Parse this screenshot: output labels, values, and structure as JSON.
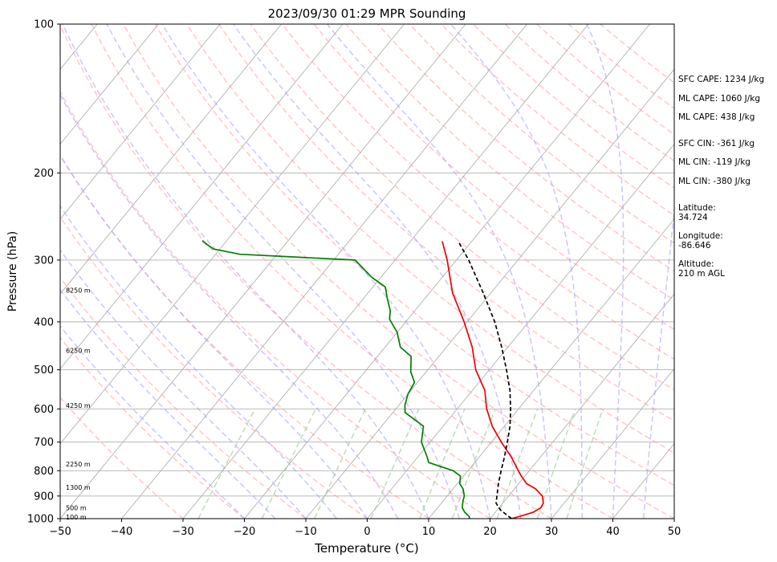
{
  "chart_data": {
    "type": "line",
    "title": "2023/09/30 01:29 MPR Sounding",
    "xlabel": "Temperature (°C)",
    "ylabel": "Pressure (hPa)",
    "xlim": [
      -50,
      50
    ],
    "ylim": [
      1000,
      100
    ],
    "y_scale": "log",
    "grid": true,
    "x_ticks": [
      "−50",
      "−40",
      "−30",
      "−20",
      "−10",
      "0",
      "10",
      "20",
      "30",
      "40",
      "50"
    ],
    "y_ticks": [
      "100",
      "200",
      "300",
      "400",
      "500",
      "600",
      "700",
      "800",
      "900",
      "1000"
    ],
    "height_labels": [
      {
        "text": "100 m",
        "pressure": 992
      },
      {
        "text": "500 m",
        "pressure": 950
      },
      {
        "text": "1300 m",
        "pressure": 865
      },
      {
        "text": "2250 m",
        "pressure": 775
      },
      {
        "text": "4250 m",
        "pressure": 590
      },
      {
        "text": "6250 m",
        "pressure": 457
      },
      {
        "text": "8250 m",
        "pressure": 345
      }
    ],
    "series": [
      {
        "color": "#ee0000",
        "points": [
          {
            "p": 1000,
            "t": 23.5
          },
          {
            "p": 990,
            "t": 24.5
          },
          {
            "p": 970,
            "t": 26.2
          },
          {
            "p": 950,
            "t": 26.8
          },
          {
            "p": 930,
            "t": 26.6
          },
          {
            "p": 900,
            "t": 25.5
          },
          {
            "p": 870,
            "t": 23.4
          },
          {
            "p": 850,
            "t": 21.3
          },
          {
            "p": 820,
            "t": 19.4
          },
          {
            "p": 800,
            "t": 18.2
          },
          {
            "p": 750,
            "t": 15.2
          },
          {
            "p": 700,
            "t": 11.6
          },
          {
            "p": 650,
            "t": 8.0
          },
          {
            "p": 600,
            "t": 4.8
          },
          {
            "p": 550,
            "t": 2.0
          },
          {
            "p": 500,
            "t": -2.2
          },
          {
            "p": 450,
            "t": -5.8
          },
          {
            "p": 400,
            "t": -10.5
          },
          {
            "p": 350,
            "t": -16.2
          },
          {
            "p": 300,
            "t": -21.5
          },
          {
            "p": 275,
            "t": -24.8
          }
        ]
      },
      {
        "color": "#008000",
        "points": [
          {
            "p": 1000,
            "t": 16.7
          },
          {
            "p": 990,
            "t": 16.3
          },
          {
            "p": 970,
            "t": 15.0
          },
          {
            "p": 950,
            "t": 14.0
          },
          {
            "p": 920,
            "t": 13.2
          },
          {
            "p": 900,
            "t": 12.8
          },
          {
            "p": 870,
            "t": 11.6
          },
          {
            "p": 850,
            "t": 10.4
          },
          {
            "p": 820,
            "t": 9.5
          },
          {
            "p": 800,
            "t": 7.6
          },
          {
            "p": 770,
            "t": 2.5
          },
          {
            "p": 750,
            "t": 1.5
          },
          {
            "p": 700,
            "t": -1.4
          },
          {
            "p": 650,
            "t": -3.2
          },
          {
            "p": 610,
            "t": -8.0
          },
          {
            "p": 590,
            "t": -9.0
          },
          {
            "p": 560,
            "t": -10.0
          },
          {
            "p": 530,
            "t": -10.5
          },
          {
            "p": 505,
            "t": -12.5
          },
          {
            "p": 470,
            "t": -14.5
          },
          {
            "p": 450,
            "t": -17.5
          },
          {
            "p": 420,
            "t": -20.0
          },
          {
            "p": 395,
            "t": -23.0
          },
          {
            "p": 380,
            "t": -24.0
          },
          {
            "p": 360,
            "t": -26.0
          },
          {
            "p": 340,
            "t": -28.0
          },
          {
            "p": 325,
            "t": -31.5
          },
          {
            "p": 300,
            "t": -36.5
          },
          {
            "p": 292,
            "t": -56.0
          },
          {
            "p": 285,
            "t": -61.0
          },
          {
            "p": 278,
            "t": -63.0
          },
          {
            "p": 274,
            "t": -64.0
          }
        ]
      },
      {
        "color": "#000000",
        "dashed": true,
        "points": [
          {
            "p": 1000,
            "t": 23.5
          },
          {
            "p": 960,
            "t": 20.5
          },
          {
            "p": 930,
            "t": 18.9
          },
          {
            "p": 900,
            "t": 18.1
          },
          {
            "p": 850,
            "t": 16.7
          },
          {
            "p": 800,
            "t": 15.4
          },
          {
            "p": 750,
            "t": 14.1
          },
          {
            "p": 700,
            "t": 12.6
          },
          {
            "p": 650,
            "t": 10.9
          },
          {
            "p": 600,
            "t": 8.7
          },
          {
            "p": 550,
            "t": 6.1
          },
          {
            "p": 500,
            "t": 2.8
          },
          {
            "p": 450,
            "t": -1.0
          },
          {
            "p": 400,
            "t": -5.5
          },
          {
            "p": 350,
            "t": -11.2
          },
          {
            "p": 300,
            "t": -18.0
          },
          {
            "p": 275,
            "t": -22.2
          }
        ]
      }
    ],
    "reference_lines": {
      "isotherms": {
        "color": "#b0b0b0"
      },
      "dry_adiabats": {
        "color": "#ff9999"
      },
      "moist_adiabats": {
        "color": "#a8a0f0"
      },
      "mixing_ratio": {
        "color": "#99cc99"
      }
    }
  },
  "side_panel": [
    "SFC CAPE: 1234 J/kg",
    "ML CAPE: 1060 J/kg",
    "ML CAPE: 438 J/kg",
    "SFC CIN: -361 J/kg",
    "ML CIN: -119 J/kg",
    "ML CIN: -380 J/kg",
    "Latitude:",
    "34.724",
    "Longitude:",
    "-86.646",
    "Altitude:",
    "210 m AGL"
  ]
}
